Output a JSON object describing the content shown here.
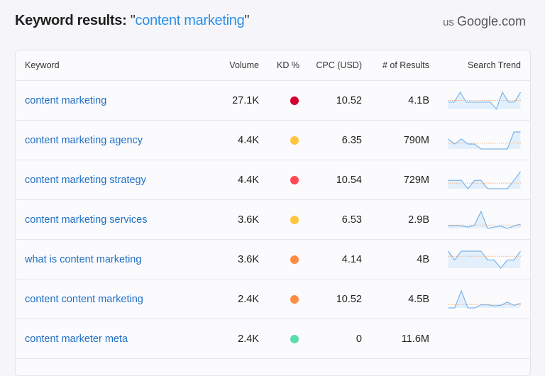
{
  "header": {
    "title_prefix": "Keyword results:",
    "open_quote": "\"",
    "query": "content marketing",
    "close_quote": "\"",
    "country": "us",
    "database": "Google.com"
  },
  "colors": {
    "accent": "#2d8fe8",
    "link": "#1f6fc5",
    "trend_line": "#7ab4ec",
    "trend_fill": "#e3f0fc",
    "trend_avg": "#f0b48a"
  },
  "table": {
    "columns": [
      "Keyword",
      "Volume",
      "KD %",
      "CPC (USD)",
      "# of Results",
      "Search Trend"
    ],
    "rows": [
      {
        "keyword": "content marketing",
        "volume": "27.1K",
        "kd_color": "#d1002f",
        "cpc": "10.52",
        "results": "4.1B",
        "trend": [
          42,
          42,
          100,
          42,
          42,
          42,
          42,
          42,
          1,
          100,
          42,
          42,
          100
        ]
      },
      {
        "keyword": "content marketing agency",
        "volume": "4.4K",
        "kd_color": "#ffc53d",
        "cpc": "6.35",
        "results": "790M",
        "trend": [
          59,
          29,
          59,
          29,
          29,
          0,
          0,
          0,
          0,
          0,
          100,
          100
        ]
      },
      {
        "keyword": "content marketing strategy",
        "volume": "4.4K",
        "kd_color": "#ff4953",
        "cpc": "10.54",
        "results": "729M",
        "trend": [
          49,
          49,
          49,
          0,
          49,
          49,
          0,
          0,
          0,
          0,
          49,
          100
        ]
      },
      {
        "keyword": "content marketing services",
        "volume": "3.6K",
        "kd_color": "#ffc53d",
        "cpc": "6.53",
        "results": "2.9B",
        "trend": [
          17,
          15,
          15,
          8,
          19,
          100,
          0,
          8,
          14,
          0,
          15,
          25
        ]
      },
      {
        "keyword": "what is content marketing",
        "volume": "3.6K",
        "kd_color": "#ff8c43",
        "cpc": "4.14",
        "results": "4B",
        "trend": [
          100,
          48,
          100,
          100,
          100,
          100,
          48,
          48,
          0,
          48,
          48,
          100
        ]
      },
      {
        "keyword": "content content marketing",
        "volume": "2.4K",
        "kd_color": "#ff8c43",
        "cpc": "10.52",
        "results": "4.5B",
        "trend": [
          0,
          0,
          100,
          0,
          0,
          18,
          18,
          12,
          15,
          34,
          15,
          27
        ]
      },
      {
        "keyword": "content marketer meta",
        "volume": "2.4K",
        "kd_color": "#59ddaa",
        "cpc": "0",
        "results": "11.6M",
        "trend": []
      }
    ]
  }
}
